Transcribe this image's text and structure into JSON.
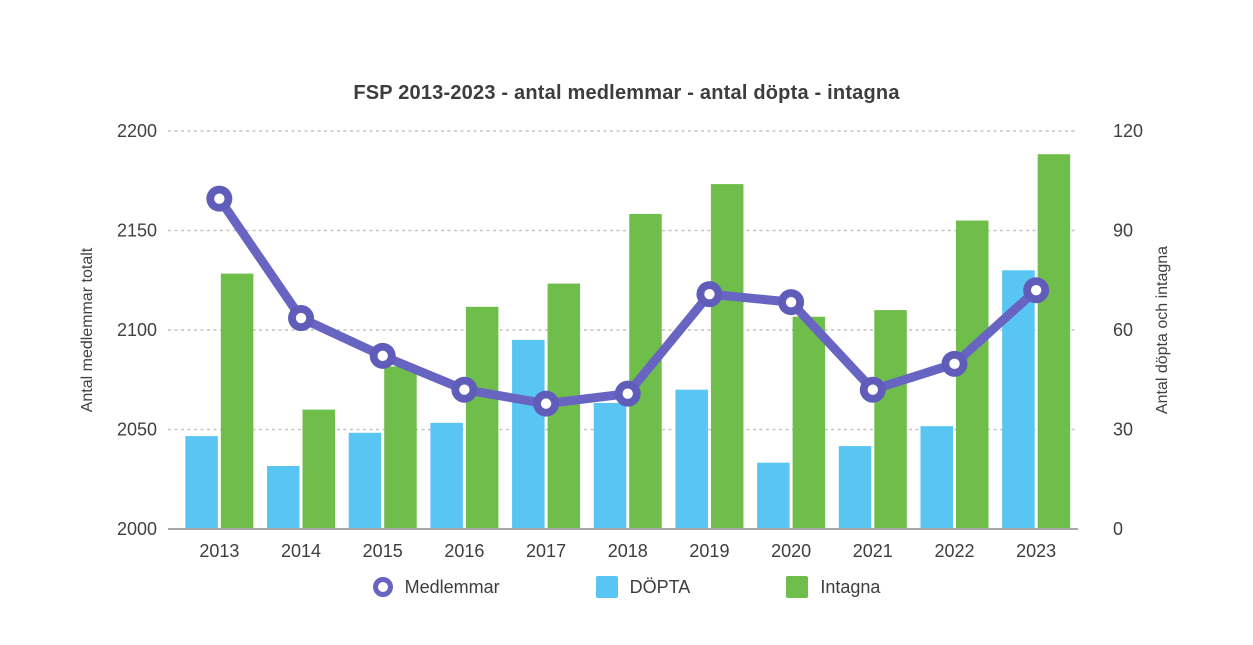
{
  "chart_data": {
    "type": "combo-line-bar",
    "title": "FSP 2013-2023 - antal medlemmar - antal döpta - intagna",
    "categories": [
      "2013",
      "2014",
      "2015",
      "2016",
      "2017",
      "2018",
      "2019",
      "2020",
      "2021",
      "2022",
      "2023"
    ],
    "series": [
      {
        "name": "Medlemmar",
        "type": "line",
        "axis": "left",
        "color": "#6765c1",
        "marker": "circle-ring",
        "marker_fill": "#ffffff",
        "values": [
          2166,
          2106,
          2087,
          2070,
          2063,
          2068,
          2118,
          2114,
          2070,
          2083,
          2120
        ]
      },
      {
        "name": "DÖPTA",
        "type": "bar",
        "axis": "right",
        "color": "#58c5f2",
        "values": [
          28,
          19,
          29,
          32,
          57,
          38,
          42,
          20,
          25,
          31,
          78
        ]
      },
      {
        "name": "Intagna",
        "type": "bar",
        "axis": "right",
        "color": "#6fbe4b",
        "values": [
          77,
          36,
          49,
          67,
          74,
          95,
          104,
          64,
          66,
          93,
          113
        ]
      }
    ],
    "left_axis": {
      "label": "Antal medlemmar totalt",
      "min": 2000,
      "max": 2200,
      "ticks": [
        2000,
        2050,
        2100,
        2150,
        2200
      ]
    },
    "right_axis": {
      "label": "Antal döpta och intagna",
      "min": 0,
      "max": 120,
      "ticks": [
        0,
        30,
        60,
        90,
        120
      ]
    },
    "grid": {
      "horizontal": true,
      "style": "dashed",
      "color": "#c3c3c3"
    },
    "baseline_color": "#a8a8a8",
    "tick_text_color": "#414141",
    "legend_position": "bottom"
  }
}
